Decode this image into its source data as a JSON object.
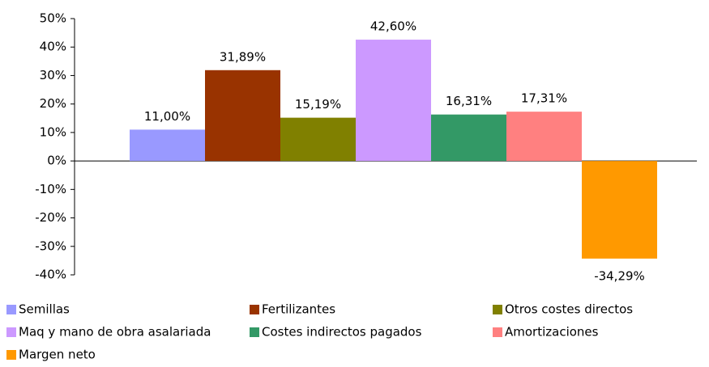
{
  "chart_data": {
    "type": "bar",
    "series": [
      {
        "name": "Semillas",
        "color": "#9999ff",
        "values": [
          11.0
        ],
        "value_labels": [
          "11,00%"
        ]
      },
      {
        "name": "Fertilizantes",
        "color": "#993300",
        "values": [
          31.89
        ],
        "value_labels": [
          "31,89%"
        ]
      },
      {
        "name": "Otros costes directos",
        "color": "#808000",
        "values": [
          15.19
        ],
        "value_labels": [
          "15,19%"
        ]
      },
      {
        "name": "Maq y mano de obra asalariada",
        "color": "#cc99ff",
        "values": [
          42.6
        ],
        "value_labels": [
          "42,60%"
        ]
      },
      {
        "name": "Costes indirectos pagados",
        "color": "#339966",
        "values": [
          16.31
        ],
        "value_labels": [
          "16,31%"
        ]
      },
      {
        "name": "Amortizaciones",
        "color": "#ff8080",
        "values": [
          17.31
        ],
        "value_labels": [
          "17,31%"
        ]
      },
      {
        "name": "Margen neto",
        "color": "#ff9900",
        "values": [
          -34.29
        ],
        "value_labels": [
          "-34,29%"
        ]
      }
    ],
    "ylim": [
      -40,
      50
    ],
    "yticks": [
      {
        "value": -40,
        "label": "-40%"
      },
      {
        "value": -30,
        "label": "-30%"
      },
      {
        "value": -20,
        "label": "-20%"
      },
      {
        "value": -10,
        "label": "-10%"
      },
      {
        "value": 0,
        "label": "0%"
      },
      {
        "value": 10,
        "label": "10%"
      },
      {
        "value": 20,
        "label": "20%"
      },
      {
        "value": 30,
        "label": "30%"
      },
      {
        "value": 40,
        "label": "40%"
      },
      {
        "value": 50,
        "label": "50%"
      }
    ],
    "legend": "bottom"
  }
}
